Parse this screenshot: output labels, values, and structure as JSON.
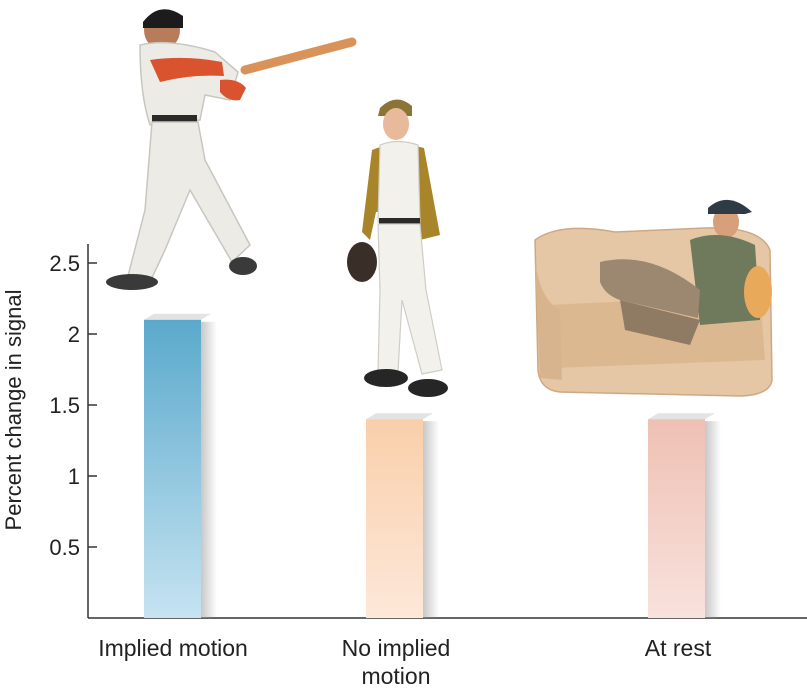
{
  "chart_data": {
    "type": "bar",
    "categories": [
      "Implied motion",
      "No implied\nmotion",
      "At rest"
    ],
    "values": [
      2.1,
      1.4,
      1.4
    ],
    "ylabel": "Percent change in signal",
    "xlabel": "",
    "ylim": [
      0,
      2.5
    ],
    "yticks": [
      0.5,
      1,
      1.5,
      2,
      2.5
    ],
    "ytick_labels": [
      "0.5",
      "1",
      "1.5",
      "2",
      "2.5"
    ],
    "grid": false,
    "bar_colors": [
      "#5aa9cc",
      "#f9cfaa",
      "#efc0b4"
    ]
  },
  "illustrations": [
    {
      "name": "batter-swinging-illustration"
    },
    {
      "name": "standing-player-illustration"
    },
    {
      "name": "man-on-sofa-illustration"
    }
  ]
}
